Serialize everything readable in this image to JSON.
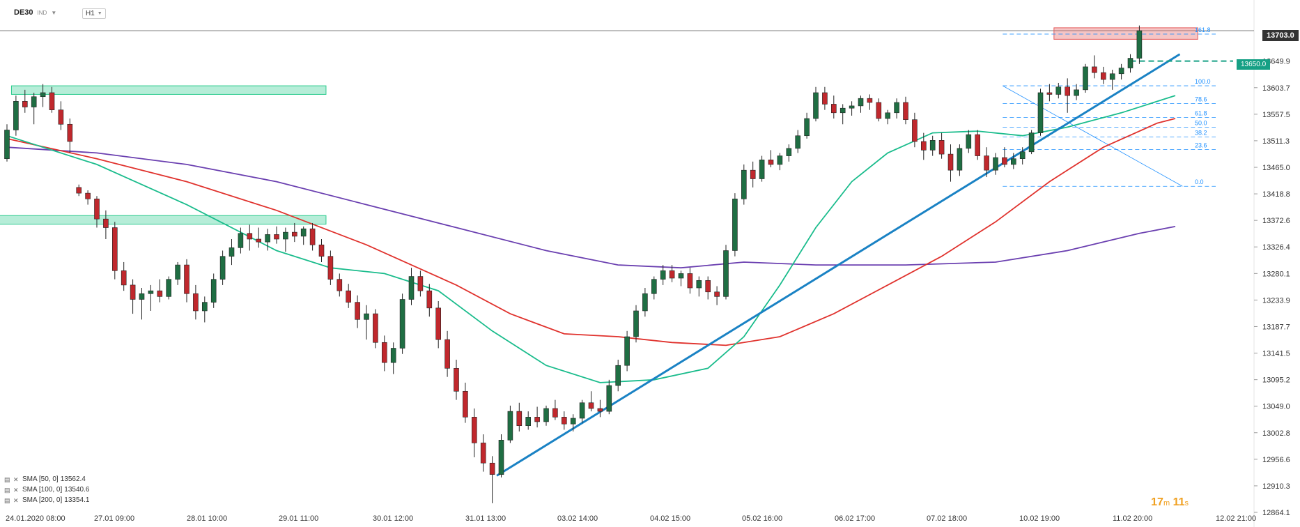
{
  "header": {
    "symbol": "DE30",
    "symbol_type": "IND",
    "timeframe": "H1"
  },
  "timer": {
    "minutes": "17",
    "m_label": "m",
    "seconds": "11",
    "s_label": "s"
  },
  "current_price": {
    "label": "13703.0",
    "color": "#333333"
  },
  "target_tag": {
    "label": "13650.0",
    "color": "#16a085"
  },
  "indicators": [
    {
      "name": "SMA [50, 0]",
      "value": "13562.4",
      "color": "#1abc8c"
    },
    {
      "name": "SMA [100, 0]",
      "value": "13540.6",
      "color": "#e0322d"
    },
    {
      "name": "SMA [200, 0]",
      "value": "13354.1",
      "color": "#6a3fb0"
    }
  ],
  "chart_data": {
    "type": "candlestick",
    "y_ticks": [
      "13649.9",
      "13603.7",
      "13557.5",
      "13511.3",
      "13465.0",
      "13418.8",
      "13372.6",
      "13326.4",
      "13280.1",
      "13233.9",
      "13187.7",
      "13141.5",
      "13095.2",
      "13049.0",
      "13002.8",
      "12956.6",
      "12910.3",
      "12864.1"
    ],
    "ylim": [
      12864.1,
      13720
    ],
    "x_ticks": [
      "24.01.2020  08:00",
      "27.01  09:00",
      "28.01  10:00",
      "29.01  11:00",
      "30.01  12:00",
      "31.01  13:00",
      "03.02  14:00",
      "04.02  15:00",
      "05.02  16:00",
      "06.02  17:00",
      "07.02  18:00",
      "10.02  19:00",
      "11.02  20:00",
      "12.02  21:00"
    ],
    "fib_levels": [
      {
        "label": "161.8",
        "value": 13697
      },
      {
        "label": "100.0",
        "value": 13607
      },
      {
        "label": "78.6",
        "value": 13576
      },
      {
        "label": "61.8",
        "value": 13552
      },
      {
        "label": "50.0",
        "value": 13535
      },
      {
        "label": "38.2",
        "value": 13518
      },
      {
        "label": "23.6",
        "value": 13496
      },
      {
        "label": "0.0",
        "value": 13432
      }
    ],
    "zones": [
      {
        "kind": "resistance",
        "x_from": 0.5,
        "x_to": 35.5,
        "y_from": 13592,
        "y_to": 13607,
        "color": "#2ecc8f"
      },
      {
        "kind": "resistance",
        "x_from": -1,
        "x_to": 35.5,
        "y_from": 13366,
        "y_to": 13381,
        "color": "#2ecc8f"
      },
      {
        "kind": "target",
        "x_from": 116.5,
        "x_to": 132.5,
        "y_from": 13688,
        "y_to": 13708,
        "color": "#e35a5a"
      }
    ],
    "trendline": {
      "x_from": 54.5,
      "y_from": 12928,
      "x_to": 130.5,
      "y_to": 13662,
      "color": "#1a82c4"
    },
    "candles": [
      [
        13480,
        13540,
        13475,
        13530
      ],
      [
        13530,
        13590,
        13520,
        13580
      ],
      [
        13580,
        13600,
        13560,
        13570
      ],
      [
        13570,
        13595,
        13540,
        13588
      ],
      [
        13588,
        13610,
        13570,
        13595
      ],
      [
        13595,
        13605,
        13560,
        13565
      ],
      [
        13565,
        13580,
        13530,
        13540
      ],
      [
        13540,
        13550,
        13490,
        13510
      ],
      [
        13430,
        13435,
        13415,
        13420
      ],
      [
        13420,
        13425,
        13400,
        13410
      ],
      [
        13410,
        13415,
        13360,
        13375
      ],
      [
        13375,
        13390,
        13340,
        13360
      ],
      [
        13360,
        13370,
        13270,
        13285
      ],
      [
        13285,
        13300,
        13250,
        13260
      ],
      [
        13260,
        13270,
        13210,
        13235
      ],
      [
        13235,
        13255,
        13200,
        13245
      ],
      [
        13245,
        13260,
        13215,
        13250
      ],
      [
        13250,
        13270,
        13230,
        13240
      ],
      [
        13240,
        13275,
        13235,
        13270
      ],
      [
        13270,
        13300,
        13260,
        13295
      ],
      [
        13295,
        13305,
        13230,
        13245
      ],
      [
        13245,
        13260,
        13200,
        13215
      ],
      [
        13215,
        13240,
        13195,
        13230
      ],
      [
        13230,
        13280,
        13220,
        13270
      ],
      [
        13270,
        13320,
        13260,
        13310
      ],
      [
        13310,
        13340,
        13295,
        13325
      ],
      [
        13325,
        13360,
        13315,
        13350
      ],
      [
        13350,
        13365,
        13320,
        13340
      ],
      [
        13340,
        13360,
        13325,
        13335
      ],
      [
        13335,
        13358,
        13320,
        13348
      ],
      [
        13348,
        13362,
        13332,
        13340
      ],
      [
        13340,
        13360,
        13318,
        13352
      ],
      [
        13352,
        13368,
        13335,
        13345
      ],
      [
        13345,
        13362,
        13330,
        13358
      ],
      [
        13358,
        13368,
        13320,
        13330
      ],
      [
        13330,
        13340,
        13300,
        13310
      ],
      [
        13310,
        13320,
        13260,
        13270
      ],
      [
        13270,
        13280,
        13240,
        13250
      ],
      [
        13250,
        13262,
        13220,
        13230
      ],
      [
        13230,
        13242,
        13185,
        13200
      ],
      [
        13200,
        13225,
        13165,
        13210
      ],
      [
        13210,
        13218,
        13150,
        13160
      ],
      [
        13160,
        13172,
        13110,
        13125
      ],
      [
        13125,
        13160,
        13105,
        13150
      ],
      [
        13150,
        13245,
        13140,
        13235
      ],
      [
        13235,
        13290,
        13225,
        13275
      ],
      [
        13275,
        13285,
        13240,
        13250
      ],
      [
        13250,
        13262,
        13205,
        13220
      ],
      [
        13220,
        13232,
        13150,
        13165
      ],
      [
        13165,
        13180,
        13100,
        13115
      ],
      [
        13115,
        13130,
        13060,
        13075
      ],
      [
        13075,
        13090,
        13020,
        13030
      ],
      [
        13030,
        13045,
        12960,
        12985
      ],
      [
        12985,
        13000,
        12935,
        12950
      ],
      [
        12950,
        12962,
        12880,
        12930
      ],
      [
        12930,
        13000,
        12925,
        12990
      ],
      [
        12990,
        13050,
        12985,
        13040
      ],
      [
        13040,
        13055,
        13005,
        13015
      ],
      [
        13015,
        13040,
        13008,
        13030
      ],
      [
        13030,
        13048,
        13012,
        13022
      ],
      [
        13022,
        13050,
        13015,
        13045
      ],
      [
        13045,
        13060,
        13025,
        13030
      ],
      [
        13030,
        13040,
        13008,
        13018
      ],
      [
        13018,
        13035,
        13005,
        13028
      ],
      [
        13028,
        13060,
        13020,
        13055
      ],
      [
        13055,
        13075,
        13040,
        13045
      ],
      [
        13045,
        13060,
        13030,
        13040
      ],
      [
        13040,
        13095,
        13035,
        13085
      ],
      [
        13085,
        13130,
        13075,
        13120
      ],
      [
        13120,
        13180,
        13110,
        13170
      ],
      [
        13170,
        13225,
        13160,
        13215
      ],
      [
        13215,
        13255,
        13205,
        13245
      ],
      [
        13245,
        13275,
        13235,
        13270
      ],
      [
        13270,
        13295,
        13260,
        13285
      ],
      [
        13285,
        13295,
        13265,
        13272
      ],
      [
        13272,
        13285,
        13258,
        13280
      ],
      [
        13280,
        13290,
        13245,
        13255
      ],
      [
        13255,
        13275,
        13240,
        13268
      ],
      [
        13268,
        13275,
        13235,
        13248
      ],
      [
        13248,
        13258,
        13225,
        13240
      ],
      [
        13240,
        13330,
        13235,
        13320
      ],
      [
        13320,
        13420,
        13310,
        13410
      ],
      [
        13410,
        13470,
        13400,
        13460
      ],
      [
        13460,
        13475,
        13430,
        13445
      ],
      [
        13445,
        13485,
        13440,
        13478
      ],
      [
        13478,
        13495,
        13465,
        13470
      ],
      [
        13470,
        13490,
        13460,
        13485
      ],
      [
        13485,
        13505,
        13475,
        13498
      ],
      [
        13498,
        13530,
        13490,
        13520
      ],
      [
        13520,
        13560,
        13515,
        13550
      ],
      [
        13550,
        13605,
        13545,
        13595
      ],
      [
        13595,
        13605,
        13565,
        13575
      ],
      [
        13575,
        13590,
        13550,
        13560
      ],
      [
        13560,
        13575,
        13540,
        13568
      ],
      [
        13568,
        13580,
        13555,
        13572
      ],
      [
        13572,
        13590,
        13560,
        13585
      ],
      [
        13585,
        13592,
        13565,
        13578
      ],
      [
        13578,
        13585,
        13545,
        13550
      ],
      [
        13550,
        13565,
        13540,
        13560
      ],
      [
        13560,
        13585,
        13550,
        13578
      ],
      [
        13578,
        13588,
        13540,
        13548
      ],
      [
        13548,
        13560,
        13500,
        13510
      ],
      [
        13510,
        13525,
        13478,
        13495
      ],
      [
        13495,
        13520,
        13485,
        13512
      ],
      [
        13512,
        13525,
        13480,
        13488
      ],
      [
        13488,
        13505,
        13440,
        13460
      ],
      [
        13460,
        13505,
        13450,
        13498
      ],
      [
        13498,
        13530,
        13490,
        13522
      ],
      [
        13522,
        13530,
        13478,
        13485
      ],
      [
        13485,
        13500,
        13448,
        13460
      ],
      [
        13460,
        13490,
        13452,
        13482
      ],
      [
        13482,
        13500,
        13465,
        13470
      ],
      [
        13470,
        13490,
        13462,
        13480
      ],
      [
        13480,
        13500,
        13470,
        13492
      ],
      [
        13492,
        13530,
        13488,
        13525
      ],
      [
        13525,
        13602,
        13520,
        13595
      ],
      [
        13595,
        13610,
        13580,
        13592
      ],
      [
        13592,
        13612,
        13585,
        13605
      ],
      [
        13605,
        13620,
        13560,
        13590
      ],
      [
        13590,
        13610,
        13582,
        13600
      ],
      [
        13600,
        13645,
        13595,
        13640
      ],
      [
        13640,
        13660,
        13620,
        13630
      ],
      [
        13630,
        13640,
        13610,
        13618
      ],
      [
        13618,
        13635,
        13600,
        13628
      ],
      [
        13628,
        13645,
        13618,
        13638
      ],
      [
        13638,
        13662,
        13630,
        13655
      ],
      [
        13655,
        13712,
        13645,
        13703
      ]
    ],
    "sma50": [
      [
        0,
        13520
      ],
      [
        10,
        13470
      ],
      [
        20,
        13400
      ],
      [
        30,
        13320
      ],
      [
        36,
        13290
      ],
      [
        42,
        13280
      ],
      [
        48,
        13250
      ],
      [
        54,
        13180
      ],
      [
        60,
        13120
      ],
      [
        66,
        13090
      ],
      [
        72,
        13095
      ],
      [
        78,
        13115
      ],
      [
        82,
        13170
      ],
      [
        86,
        13260
      ],
      [
        90,
        13360
      ],
      [
        94,
        13440
      ],
      [
        98,
        13490
      ],
      [
        103,
        13525
      ],
      [
        108,
        13528
      ],
      [
        113,
        13520
      ],
      [
        118,
        13535
      ],
      [
        124,
        13560
      ],
      [
        130,
        13590
      ]
    ],
    "sma100": [
      [
        0,
        13515
      ],
      [
        10,
        13480
      ],
      [
        20,
        13440
      ],
      [
        30,
        13390
      ],
      [
        40,
        13330
      ],
      [
        50,
        13260
      ],
      [
        56,
        13210
      ],
      [
        62,
        13175
      ],
      [
        68,
        13170
      ],
      [
        74,
        13160
      ],
      [
        80,
        13155
      ],
      [
        86,
        13170
      ],
      [
        92,
        13210
      ],
      [
        98,
        13260
      ],
      [
        104,
        13310
      ],
      [
        110,
        13370
      ],
      [
        116,
        13440
      ],
      [
        122,
        13500
      ],
      [
        128,
        13542
      ],
      [
        130,
        13550
      ]
    ],
    "sma200": [
      [
        0,
        13500
      ],
      [
        10,
        13490
      ],
      [
        20,
        13470
      ],
      [
        30,
        13440
      ],
      [
        40,
        13400
      ],
      [
        50,
        13360
      ],
      [
        60,
        13320
      ],
      [
        68,
        13295
      ],
      [
        75,
        13290
      ],
      [
        82,
        13300
      ],
      [
        90,
        13295
      ],
      [
        100,
        13295
      ],
      [
        110,
        13300
      ],
      [
        118,
        13320
      ],
      [
        126,
        13350
      ],
      [
        130,
        13362
      ]
    ]
  }
}
